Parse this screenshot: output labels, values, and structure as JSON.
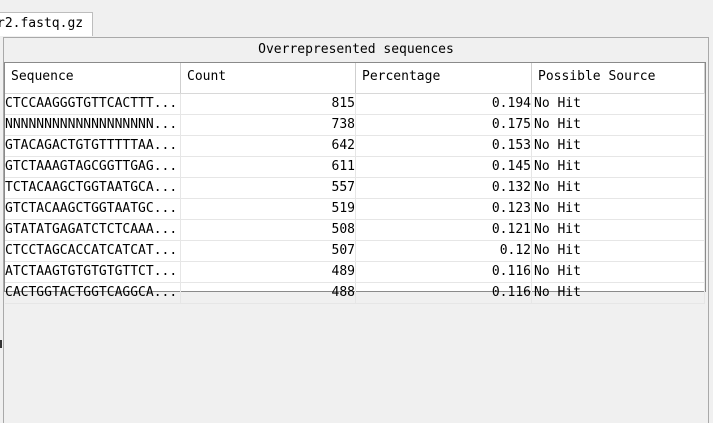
{
  "tab": {
    "label": "r2.fastq.gz"
  },
  "panel": {
    "title": "Overrepresented sequences"
  },
  "table": {
    "columns": [
      "Sequence",
      "Count",
      "Percentage",
      "Possible Source"
    ],
    "rows": [
      [
        "CTCCAAGGGTGTTCACTTT...",
        "815",
        "0.194",
        "No Hit"
      ],
      [
        "NNNNNNNNNNNNNNNNNNN...",
        "738",
        "0.175",
        "No Hit"
      ],
      [
        "GTACAGACTGTGTTTTTAA...",
        "642",
        "0.153",
        "No Hit"
      ],
      [
        "GTCTAAAGTAGCGGTTGAG...",
        "611",
        "0.145",
        "No Hit"
      ],
      [
        "TCTACAAGCTGGTAATGCA...",
        "557",
        "0.132",
        "No Hit"
      ],
      [
        "GTCTACAAGCTGGTAATGC...",
        "519",
        "0.123",
        "No Hit"
      ],
      [
        "GTATATGAGATCTCTCAAA...",
        "508",
        "0.121",
        "No Hit"
      ],
      [
        "CTCCTAGCACCATCATCAT...",
        "507",
        "0.12",
        "No Hit"
      ],
      [
        "ATCTAAGTGTGTGTGTTCT...",
        "489",
        "0.116",
        "No Hit"
      ],
      [
        "CACTGGTACTGGTCAGGCA...",
        "488",
        "0.116",
        "No Hit"
      ]
    ]
  }
}
